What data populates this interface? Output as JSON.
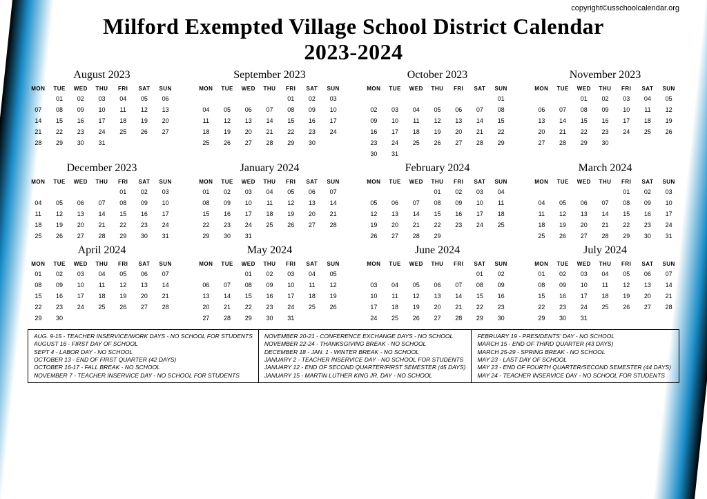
{
  "copyright": "copyright©usschoolcalendar.org",
  "title_line1": "Milford Exempted Village School District Calendar",
  "title_line2": "2023-2024",
  "dow": [
    "MON",
    "TUE",
    "WED",
    "THU",
    "FRI",
    "SAT",
    "SUN"
  ],
  "months": [
    {
      "name": "August 2023",
      "start": 1,
      "days": 31
    },
    {
      "name": "September 2023",
      "start": 4,
      "days": 30
    },
    {
      "name": "October 2023",
      "start": 6,
      "days": 31
    },
    {
      "name": "November 2023",
      "start": 2,
      "days": 30
    },
    {
      "name": "December 2023",
      "start": 4,
      "days": 31
    },
    {
      "name": "January 2024",
      "start": 0,
      "days": 31
    },
    {
      "name": "February 2024",
      "start": 3,
      "days": 29
    },
    {
      "name": "March 2024",
      "start": 4,
      "days": 31
    },
    {
      "name": "April 2024",
      "start": 0,
      "days": 30
    },
    {
      "name": "May 2024",
      "start": 2,
      "days": 31
    },
    {
      "name": "June 2024",
      "start": 5,
      "days": 30
    },
    {
      "name": "July 2024",
      "start": 0,
      "days": 31
    }
  ],
  "notes": [
    [
      "AUG. 9-15 - TEACHER INSERVICE/WORK DAYS - NO SCHOOL FOR STUDENTS",
      "AUGUST 16 - FIRST DAY OF SCHOOL",
      "SEPT 4 - LABOR DAY - NO SCHOOL",
      "OCTOBER 13 - END OF FIRST QUARTER (42 DAYS)",
      "OCTOBER 16-17 - FALL BREAK - NO SCHOOL",
      "NOVEMBER 7 - TEACHER INSERVICE DAY - NO SCHOOL FOR STUDENTS"
    ],
    [
      "NOVEMBER 20-21 - CONFERENCE EXCHANGE DAYS - NO SCHOOL",
      "NOVEMBER 22-24 - THANKSGIVING BREAK - NO SCHOOL",
      "DECEMBER 18 - JAN. 1 - WINTER BREAK - NO SCHOOL",
      "JANUARY 2 - TEACHER INSERVICE DAY - NO SCHOOL FOR STUDENTS",
      "JANUARY 12 - END OF SECOND QUARTER/FIRST SEMESTER (45 DAYS)",
      "JANUARY 15 - MARTIN LUTHER KING JR. DAY - NO SCHOOL"
    ],
    [
      "FEBRUARY 19 - PRESIDENTS' DAY - NO SCHOOL",
      "MARCH 15 - END OF THIRD QUARTER (43 DAYS)",
      "MARCH 25-29 - SPRING BREAK - NO SCHOOL",
      "MAY 23 - LAST DAY OF SCHOOL",
      "MAY 23 - END OF FOURTH QUARTER/SECOND SEMESTER (44 DAYS)",
      "MAY 24 - TEACHER INSERVICE DAY - NO SCHOOL FOR STUDENTS"
    ]
  ],
  "style": {
    "background": "#ffffff",
    "accent_gradient": [
      "#000000",
      "#1a8dc9",
      "#ffffff"
    ],
    "title_fontsize": 32,
    "month_name_fontsize": 16,
    "dow_fontsize": 8,
    "day_fontsize": 9,
    "notes_fontsize": 8.5,
    "border_color": "#000000"
  }
}
